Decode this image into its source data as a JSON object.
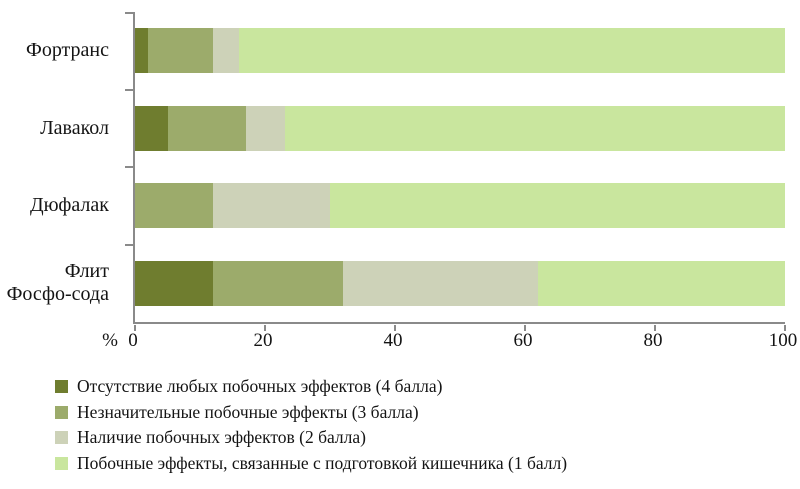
{
  "chart_data": {
    "type": "bar",
    "orientation": "horizontal",
    "stacked": true,
    "grid": false,
    "legend_position": "bottom",
    "categories": [
      "Фортранс",
      "Лавакол",
      "Дюфалак",
      "Флит Фосфо-сода"
    ],
    "series": [
      {
        "name": "Отсутствие любых побочных эффектов (4 балла)",
        "color": "#6f7d2f",
        "values": [
          2,
          5,
          0,
          12
        ]
      },
      {
        "name": "Незначительные побочные эффекты (3 балла)",
        "color": "#9cab6b",
        "values": [
          10,
          12,
          12,
          20
        ]
      },
      {
        "name": "Наличие побочных эффектов (2 балла)",
        "color": "#cdd2b8",
        "values": [
          4,
          6,
          18,
          30
        ]
      },
      {
        "name": "Побочные эффекты, связанные с подготовкой кишечника (1 балл)",
        "color": "#c9e69e",
        "values": [
          84,
          77,
          70,
          38
        ]
      }
    ],
    "x_axis": {
      "label": "%",
      "ticks": [
        0,
        20,
        40,
        60,
        80,
        100
      ],
      "range": [
        0,
        100
      ]
    },
    "axis_color": "#8a8a8a"
  }
}
